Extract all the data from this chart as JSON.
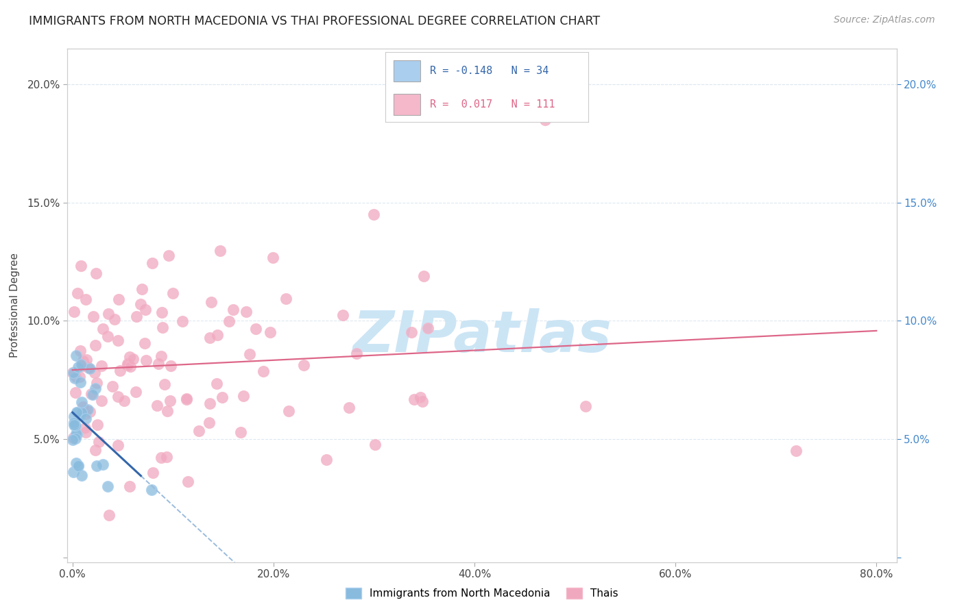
{
  "title": "IMMIGRANTS FROM NORTH MACEDONIA VS THAI PROFESSIONAL DEGREE CORRELATION CHART",
  "source": "Source: ZipAtlas.com",
  "ylabel": "Professional Degree",
  "xlim": [
    -0.005,
    0.82
  ],
  "ylim": [
    -0.002,
    0.215
  ],
  "yticks": [
    0.0,
    0.05,
    0.1,
    0.15,
    0.2
  ],
  "xticks": [
    0.0,
    0.2,
    0.4,
    0.6,
    0.8
  ],
  "legend1_color": "#aacfee",
  "legend2_color": "#f5b8cb",
  "R_mac": -0.148,
  "N_mac": 34,
  "R_thai": 0.017,
  "N_thai": 111,
  "watermark": "ZIPatlas",
  "watermark_color": "#cce5f5",
  "scatter_mac_color": "#88bbdd",
  "scatter_thai_color": "#f0a8bf",
  "trend_mac_solid_color": "#3366aa",
  "trend_mac_dash_color": "#99bbdd",
  "trend_thai_color": "#dd6688",
  "background_color": "#ffffff",
  "grid_color": "#dde8f0"
}
